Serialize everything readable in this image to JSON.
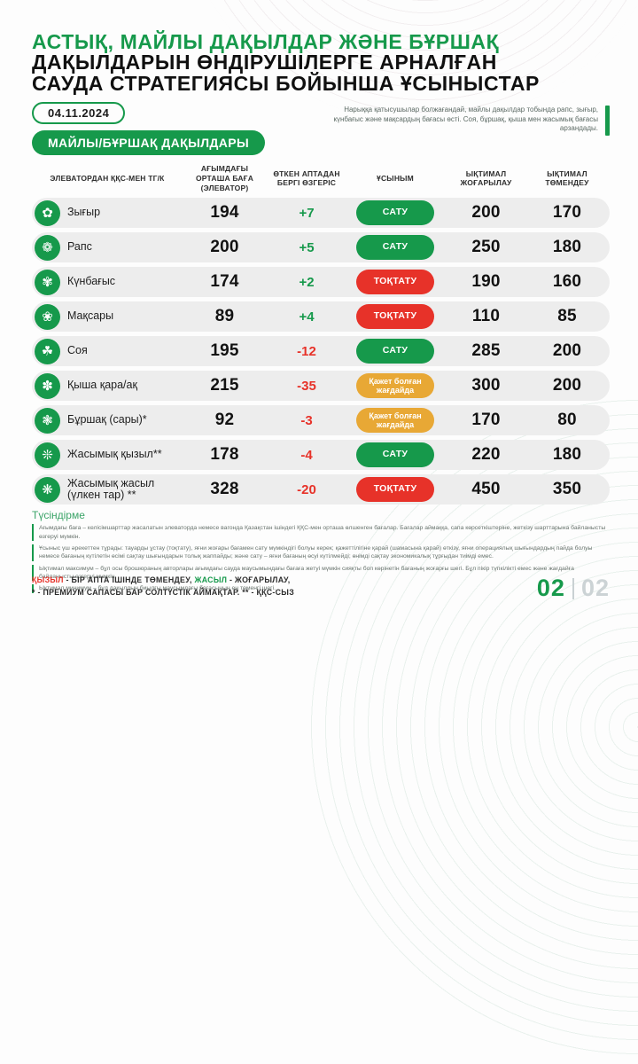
{
  "title": {
    "line1": "АСТЫҚ, МАЙЛЫ ДАҚЫЛДАР ЖӘНЕ БҰРШАҚ",
    "line2": "ДАҚЫЛДАРЫН ӨНДІРУШІЛЕРГЕ АРНАЛҒАН",
    "line3": "САУДА СТРАТЕГИЯСЫ БОЙЫНША ҰСЫНЫСТАР"
  },
  "date_badge": "04.11.2024",
  "section_badge": "МАЙЛЫ/БҰРШАҚ ДАҚЫЛДАРЫ",
  "intro": "Нарыққа қатысушылар болжағандай, майлы дақылдар тобында рапс, зығыр, күнбағыс және мақсардың бағасы өсті. Соя, бұршақ, қыша мен жасымық бағасы арзандады.",
  "table": {
    "headers": [
      "ЭЛЕВАТОРДАН ҚҚС-МЕН ТГ/К",
      "АҒЫМДАҒЫ ОРТАША БАҒА (ЭЛЕВАТОР)",
      "ӨТКЕН АПТАДАН БЕРГІ ӨЗГЕРІС",
      "ҰСЫНЫМ",
      "ЫҚТИМАЛ ЖОҒАРЫЛАУ",
      "ЫҚТИМАЛ ТӨМЕНДЕУ"
    ],
    "rows": [
      {
        "name": "Зығыр",
        "icon": "✿",
        "price": "194",
        "change": "+7",
        "recommendation": "САТУ",
        "max": "200",
        "min": "170"
      },
      {
        "name": "Рапс",
        "icon": "❁",
        "price": "200",
        "change": "+5",
        "recommendation": "САТУ",
        "max": "250",
        "min": "180"
      },
      {
        "name": "Күнбағыс",
        "icon": "✾",
        "price": "174",
        "change": "+2",
        "recommendation": "ТОҚТАТУ",
        "max": "190",
        "min": "160"
      },
      {
        "name": "Мақсары",
        "icon": "❀",
        "price": "89",
        "change": "+4",
        "recommendation": "ТОҚТАТУ",
        "max": "110",
        "min": "85"
      },
      {
        "name": "Соя",
        "icon": "☘",
        "price": "195",
        "change": "-12",
        "recommendation": "САТУ",
        "max": "285",
        "min": "200"
      },
      {
        "name": "Қыша қара/ақ",
        "icon": "✽",
        "price": "215",
        "change": "-35",
        "recommendation": "Қажет болған жағдайда",
        "max": "300",
        "min": "200"
      },
      {
        "name": "Бұршақ (сары)*",
        "icon": "❃",
        "price": "92",
        "change": "-3",
        "recommendation": "Қажет болған жағдайда",
        "max": "170",
        "min": "80"
      },
      {
        "name": "Жасымық қызыл**",
        "icon": "❊",
        "price": "178",
        "change": "-4",
        "recommendation": "САТУ",
        "max": "220",
        "min": "180"
      },
      {
        "name": "Жасымық жасыл (үлкен тар) **",
        "icon": "❋",
        "price": "328",
        "change": "-20",
        "recommendation": "ТОҚТАТУ",
        "max": "450",
        "min": "350"
      }
    ]
  },
  "notes": {
    "title": "Түсіндірме",
    "p1": "Ағымдағы баға – келісімшарттар жасалатын элеваторда немесе вагонда Қазақстан ішіндегі ҚҚС-мен орташа өлшенген бағалар. Бағалар аймаққа, сапа көрсеткіштеріне, жеткізу шарттарына байланысты өзгеруі мүмкін.",
    "p2": "Ұсыныс үш әрекеттен тұрады: тауарды ұстау (тоқтату), яғни жоғары бағамен сату мүмкіндігі болуы керек; қажеттілігіне қарай (шамасына қарай) өткізу, яғни операциялық шығындардың пайда болуы немесе бағаның күтілетін өсімі сақтау шығындарын толық жаппайды; және сату – яғни бағаның өсуі күтілмейді; өнімді сақтау экономикалық тұрғыдан тиімді емес.",
    "p3": "Ықтимал максимум – бұл осы брошюраның авторлары ағымдағы сауда маусымындағы бағаға жетуі мүмкін сияқты боп көрінетін бағаның жоғарғы шегі. Бұл пікір түпкілікті емес және жағдайға байланысты өзгеруі мүмкін.",
    "p4": "Ықтимал минимум – бұл дақылдың биылғы маусымдағы бағасының ең төменгі шегі."
  },
  "legend": {
    "red_word": "ҚЫЗЫЛ",
    "line1_mid": " - БІР АПТА ІШІНДЕ ТӨМЕНДЕУ, ",
    "green_word": "ЖАСЫЛ",
    "line1_end": " - ЖОҒАРЫЛАУ,",
    "line2": "* - ПРЕМИУМ САПАСЫ БАР СОЛТҮСТІК АЙМАҚТАР. ** - ҚҚС-СЫЗ"
  },
  "pagination": {
    "current": "02",
    "total": "02"
  },
  "colors": {
    "green": "#16994B",
    "red": "#E73229",
    "amber": "#E8A835",
    "row_bg": "#EDEDED"
  }
}
